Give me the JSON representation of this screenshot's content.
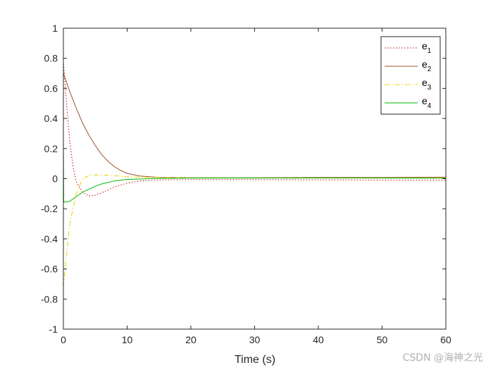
{
  "chart_data": {
    "type": "line",
    "xlabel": "Time (s)",
    "xlim": [
      0,
      60
    ],
    "ylim": [
      -1,
      1
    ],
    "xticks": [
      0,
      10,
      20,
      30,
      40,
      50,
      60
    ],
    "yticks": [
      -1,
      -0.8,
      -0.6,
      -0.4,
      -0.2,
      0,
      0.2,
      0.4,
      0.6,
      0.8,
      1
    ],
    "grid": false,
    "legend_position": "top-right",
    "series": [
      {
        "name": "e1",
        "legend_base": "e",
        "legend_sub": "1",
        "color": "#c00000",
        "style": "dotted",
        "points": [
          [
            0,
            0.78
          ],
          [
            0.5,
            0.5
          ],
          [
            1,
            0.25
          ],
          [
            1.5,
            0.08
          ],
          [
            2,
            -0.02
          ],
          [
            3,
            -0.09
          ],
          [
            4,
            -0.115
          ],
          [
            5,
            -0.11
          ],
          [
            6,
            -0.095
          ],
          [
            7,
            -0.075
          ],
          [
            8,
            -0.055
          ],
          [
            10,
            -0.03
          ],
          [
            12,
            -0.015
          ],
          [
            15,
            -0.008
          ],
          [
            20,
            -0.005
          ],
          [
            30,
            -0.006
          ],
          [
            40,
            -0.008
          ],
          [
            50,
            -0.009
          ],
          [
            60,
            -0.01
          ]
        ]
      },
      {
        "name": "e2",
        "legend_base": "e",
        "legend_sub": "2",
        "color": "#a0522d",
        "style": "solid",
        "points": [
          [
            0,
            0.7
          ],
          [
            1,
            0.58
          ],
          [
            2,
            0.47
          ],
          [
            3,
            0.37
          ],
          [
            4,
            0.29
          ],
          [
            5,
            0.22
          ],
          [
            6,
            0.16
          ],
          [
            7,
            0.115
          ],
          [
            8,
            0.08
          ],
          [
            9,
            0.055
          ],
          [
            10,
            0.035
          ],
          [
            12,
            0.018
          ],
          [
            15,
            0.008
          ],
          [
            20,
            0.006
          ],
          [
            30,
            0.006
          ],
          [
            40,
            0.008
          ],
          [
            50,
            0.008
          ],
          [
            60,
            0.01
          ]
        ]
      },
      {
        "name": "e3",
        "legend_base": "e",
        "legend_sub": "3",
        "color": "#e8d000",
        "style": "dashdot",
        "points": [
          [
            0,
            -0.72
          ],
          [
            0.5,
            -0.5
          ],
          [
            1,
            -0.3
          ],
          [
            2,
            -0.1
          ],
          [
            3,
            0.0
          ],
          [
            4,
            0.02
          ],
          [
            5,
            0.025
          ],
          [
            6,
            0.025
          ],
          [
            8,
            0.02
          ],
          [
            10,
            0.012
          ],
          [
            15,
            0.008
          ],
          [
            20,
            0.006
          ],
          [
            30,
            0.005
          ],
          [
            40,
            0.005
          ],
          [
            50,
            0.005
          ],
          [
            60,
            0.005
          ]
        ]
      },
      {
        "name": "e4",
        "legend_base": "e",
        "legend_sub": "4",
        "color": "#00bb00",
        "style": "solid",
        "points": [
          [
            0,
            0.25
          ],
          [
            0.05,
            -0.155
          ],
          [
            0.5,
            -0.155
          ],
          [
            1,
            -0.15
          ],
          [
            2,
            -0.12
          ],
          [
            3,
            -0.09
          ],
          [
            4,
            -0.07
          ],
          [
            5,
            -0.05
          ],
          [
            6,
            -0.035
          ],
          [
            8,
            -0.015
          ],
          [
            10,
            -0.005
          ],
          [
            15,
            0.002
          ],
          [
            20,
            0.004
          ],
          [
            30,
            0.004
          ],
          [
            40,
            0.004
          ],
          [
            50,
            0.004
          ],
          [
            60,
            0.003
          ]
        ]
      }
    ]
  },
  "watermark": "CSDN @海神之光"
}
